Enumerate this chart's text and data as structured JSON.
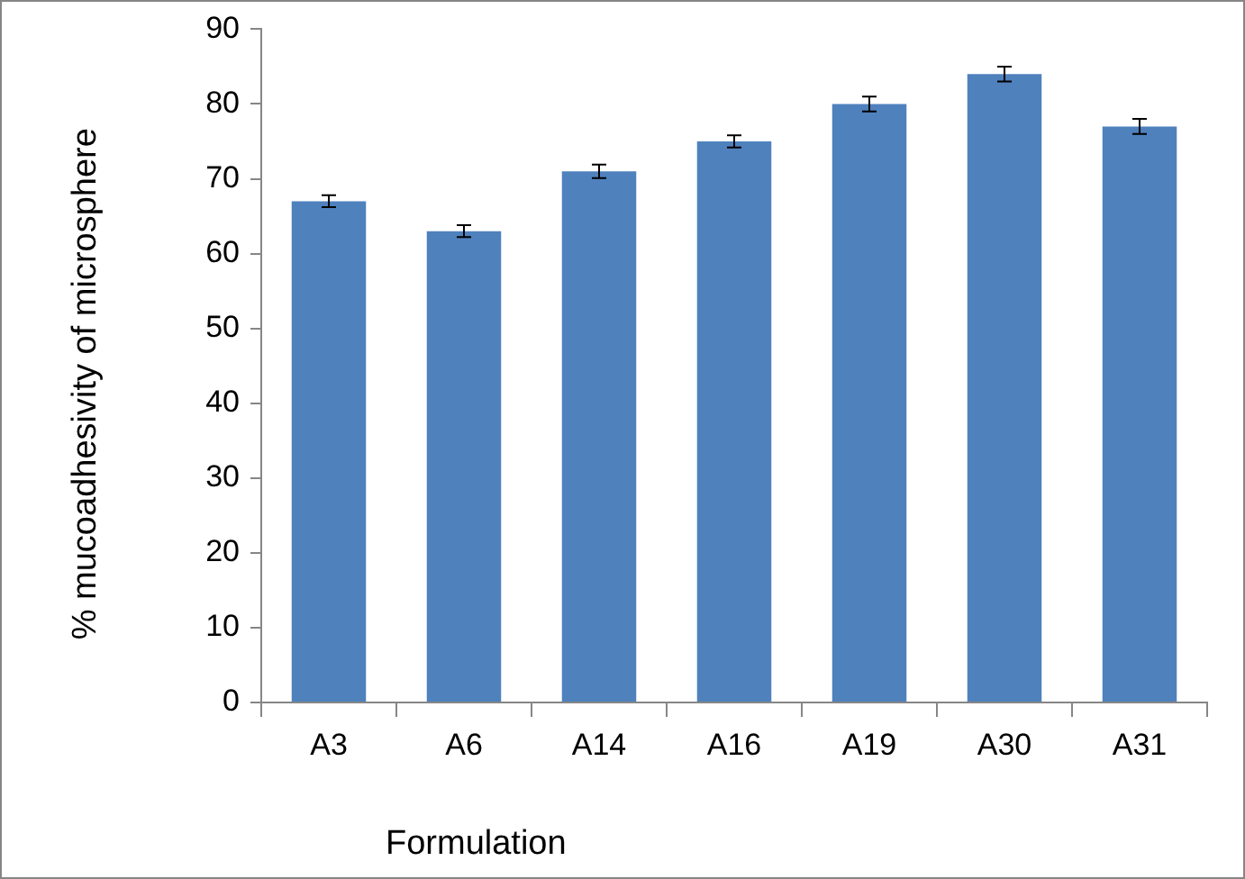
{
  "chart_data": {
    "type": "bar",
    "xlabel": "Formulation",
    "ylabel": "% mucoadhesivity of microsphere",
    "categories": [
      "A3",
      "A6",
      "A14",
      "A16",
      "A19",
      "A30",
      "A31"
    ],
    "values": [
      67,
      63,
      71,
      75,
      80,
      84,
      77
    ],
    "errors": [
      0.8,
      0.8,
      0.9,
      0.8,
      1,
      1,
      1
    ],
    "color": "#4f81bd",
    "ylim": [
      0,
      90
    ],
    "yticks": [
      0,
      10,
      20,
      30,
      40,
      50,
      60,
      70,
      80,
      90
    ]
  }
}
